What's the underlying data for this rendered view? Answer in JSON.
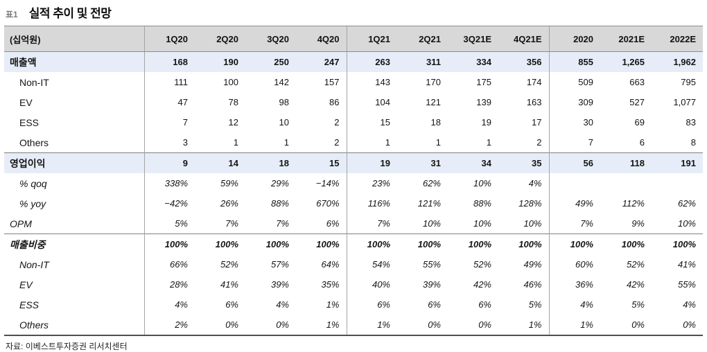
{
  "title": {
    "tag": "표1",
    "text": "실적 추이 및 전망"
  },
  "footer": {
    "source": "자료: 이베스트투자증권 리서치센터"
  },
  "table": {
    "unit_header": "(십억원)",
    "columns": [
      "1Q20",
      "2Q20",
      "3Q20",
      "4Q20",
      "1Q21",
      "2Q21",
      "3Q21E",
      "4Q21E",
      "2020",
      "2021E",
      "2022E"
    ],
    "group_starts": [
      0,
      4,
      8
    ],
    "rows": [
      {
        "label": "매출액",
        "kind": "total",
        "values": [
          "168",
          "190",
          "250",
          "247",
          "263",
          "311",
          "334",
          "356",
          "855",
          "1,265",
          "1,962"
        ]
      },
      {
        "label": "Non-IT",
        "kind": "sub",
        "values": [
          "111",
          "100",
          "142",
          "157",
          "143",
          "170",
          "175",
          "174",
          "509",
          "663",
          "795"
        ]
      },
      {
        "label": "EV",
        "kind": "sub",
        "values": [
          "47",
          "78",
          "98",
          "86",
          "104",
          "121",
          "139",
          "163",
          "309",
          "527",
          "1,077"
        ]
      },
      {
        "label": "ESS",
        "kind": "sub",
        "values": [
          "7",
          "12",
          "10",
          "2",
          "15",
          "18",
          "19",
          "17",
          "30",
          "69",
          "83"
        ]
      },
      {
        "label": "Others",
        "kind": "sub",
        "values": [
          "3",
          "1",
          "1",
          "2",
          "1",
          "1",
          "1",
          "2",
          "7",
          "6",
          "8"
        ]
      },
      {
        "label": "영업이익",
        "kind": "total section-start",
        "values": [
          "9",
          "14",
          "18",
          "15",
          "19",
          "31",
          "34",
          "35",
          "56",
          "118",
          "191"
        ]
      },
      {
        "label": "% qoq",
        "kind": "sub italic",
        "values": [
          "338%",
          "59%",
          "29%",
          "−14%",
          "23%",
          "62%",
          "10%",
          "4%",
          "",
          "",
          ""
        ]
      },
      {
        "label": "% yoy",
        "kind": "sub italic",
        "values": [
          "−42%",
          "26%",
          "88%",
          "670%",
          "116%",
          "121%",
          "88%",
          "128%",
          "49%",
          "112%",
          "62%"
        ]
      },
      {
        "label": "OPM",
        "kind": "italic",
        "values": [
          "5%",
          "7%",
          "7%",
          "6%",
          "7%",
          "10%",
          "10%",
          "10%",
          "7%",
          "9%",
          "10%"
        ]
      },
      {
        "label": "매출비중",
        "kind": "bold-italic section-start",
        "values": [
          "100%",
          "100%",
          "100%",
          "100%",
          "100%",
          "100%",
          "100%",
          "100%",
          "100%",
          "100%",
          "100%"
        ]
      },
      {
        "label": "Non-IT",
        "kind": "sub italic",
        "values": [
          "66%",
          "52%",
          "57%",
          "64%",
          "54%",
          "55%",
          "52%",
          "49%",
          "60%",
          "52%",
          "41%"
        ]
      },
      {
        "label": "EV",
        "kind": "sub italic",
        "values": [
          "28%",
          "41%",
          "39%",
          "35%",
          "40%",
          "39%",
          "42%",
          "46%",
          "36%",
          "42%",
          "55%"
        ]
      },
      {
        "label": "ESS",
        "kind": "sub italic",
        "values": [
          "4%",
          "6%",
          "4%",
          "1%",
          "6%",
          "6%",
          "6%",
          "5%",
          "4%",
          "5%",
          "4%"
        ]
      },
      {
        "label": "Others",
        "kind": "sub italic",
        "values": [
          "2%",
          "0%",
          "0%",
          "1%",
          "1%",
          "0%",
          "0%",
          "1%",
          "1%",
          "0%",
          "0%"
        ]
      }
    ]
  },
  "colors": {
    "header_bg": "#d8d8d8",
    "highlight_row_bg": "#e7edf8",
    "section_border": "#7f7f7f",
    "group_divider": "#a3a3a3",
    "bottom_border": "#4f4f4f"
  }
}
